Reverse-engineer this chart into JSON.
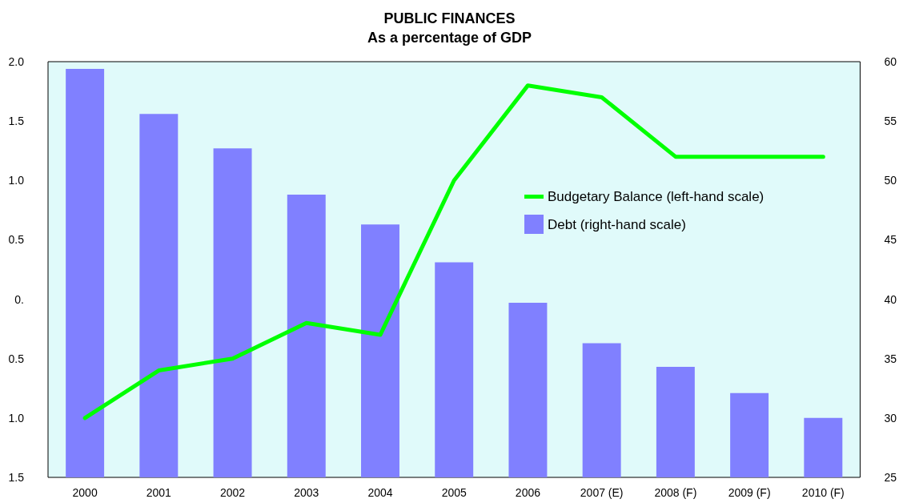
{
  "chart_data": {
    "type": "bar",
    "title": "PUBLIC FINANCES\nAs a percentage of GDP",
    "categories": [
      "2000",
      "2001",
      "2002",
      "2003",
      "2004",
      "2005",
      "2006",
      "2007 (E)",
      "2008 (F)",
      "2009 (F)",
      "2010 (F)"
    ],
    "series": [
      {
        "name": "Budgetary Balance (left-hand scale)",
        "type": "line",
        "color": "#00ff00",
        "values": [
          -1.0,
          -0.6,
          -0.5,
          -0.2,
          -0.3,
          1.0,
          1.8,
          1.7,
          1.2,
          1.2,
          1.2
        ]
      },
      {
        "name": "Debt (right-hand scale)",
        "axis": "y2",
        "color": "#8080ff",
        "values": [
          59.4,
          55.6,
          52.7,
          48.8,
          46.3,
          43.1,
          39.7,
          36.3,
          34.3,
          32.1,
          30.0
        ]
      }
    ],
    "ylim": [
      -1.5,
      2.0
    ],
    "yticks": [
      {
        "value": -1.5,
        "label": "1.5"
      },
      {
        "value": -1.0,
        "label": "1.0"
      },
      {
        "value": -0.5,
        "label": "0.5"
      },
      {
        "value": 0,
        "label": "0."
      },
      {
        "value": 0.5,
        "label": "0.5"
      },
      {
        "value": 1.0,
        "label": "1.0"
      },
      {
        "value": 1.5,
        "label": "1.5"
      },
      {
        "value": 2.0,
        "label": "2.0"
      }
    ],
    "y2lim": [
      25,
      60
    ],
    "y2ticks": [
      25,
      30,
      35,
      40,
      45,
      50,
      55,
      60
    ],
    "legend": "right",
    "grid": false,
    "marker": "none"
  }
}
